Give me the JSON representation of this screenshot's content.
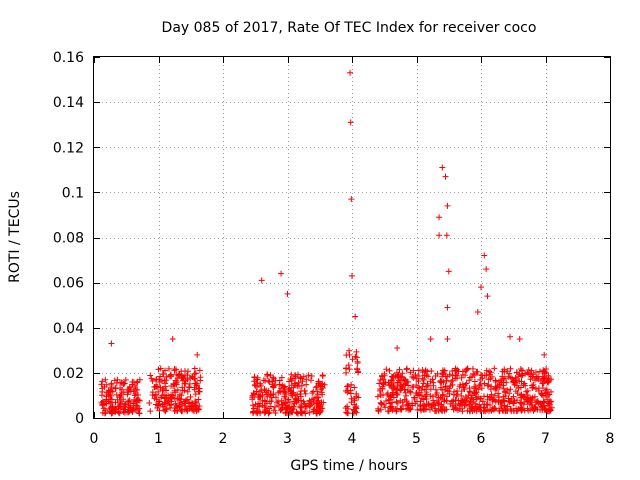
{
  "chart_data": {
    "type": "scatter",
    "title": "Day 085 of 2017, Rate Of TEC Index for receiver coco",
    "xlabel": "GPS time / hours",
    "ylabel": "ROTI / TECUs",
    "xlim": [
      0,
      8
    ],
    "ylim": [
      0,
      0.16
    ],
    "x_ticks": [
      0,
      1,
      2,
      3,
      4,
      5,
      6,
      7,
      8
    ],
    "x_tick_labels": [
      "0",
      "1",
      "2",
      "3",
      "4",
      "5",
      "6",
      "7",
      "8"
    ],
    "y_ticks": [
      0,
      0.02,
      0.04,
      0.06,
      0.08,
      0.1,
      0.12,
      0.14,
      0.16
    ],
    "y_tick_labels": [
      "0",
      "0.02",
      "0.04",
      "0.06",
      "0.08",
      "0.1",
      "0.12",
      "0.14",
      "0.16"
    ],
    "grid": true,
    "marker": "+",
    "marker_color": "#ff0000",
    "notable_points": [
      {
        "x": 0.27,
        "y": 0.033
      },
      {
        "x": 1.22,
        "y": 0.035
      },
      {
        "x": 1.6,
        "y": 0.028
      },
      {
        "x": 2.6,
        "y": 0.061
      },
      {
        "x": 2.9,
        "y": 0.064
      },
      {
        "x": 3.0,
        "y": 0.055
      },
      {
        "x": 3.97,
        "y": 0.153
      },
      {
        "x": 3.98,
        "y": 0.131
      },
      {
        "x": 3.99,
        "y": 0.097
      },
      {
        "x": 4.0,
        "y": 0.063
      },
      {
        "x": 4.05,
        "y": 0.045
      },
      {
        "x": 4.7,
        "y": 0.031
      },
      {
        "x": 5.22,
        "y": 0.035
      },
      {
        "x": 5.35,
        "y": 0.081
      },
      {
        "x": 5.35,
        "y": 0.089
      },
      {
        "x": 5.4,
        "y": 0.111
      },
      {
        "x": 5.45,
        "y": 0.107
      },
      {
        "x": 5.48,
        "y": 0.094
      },
      {
        "x": 5.47,
        "y": 0.081
      },
      {
        "x": 5.5,
        "y": 0.065
      },
      {
        "x": 5.48,
        "y": 0.049
      },
      {
        "x": 5.48,
        "y": 0.035
      },
      {
        "x": 6.05,
        "y": 0.072
      },
      {
        "x": 6.08,
        "y": 0.066
      },
      {
        "x": 6.0,
        "y": 0.058
      },
      {
        "x": 6.1,
        "y": 0.054
      },
      {
        "x": 5.95,
        "y": 0.047
      },
      {
        "x": 6.45,
        "y": 0.036
      },
      {
        "x": 6.6,
        "y": 0.035
      },
      {
        "x": 6.98,
        "y": 0.028
      }
    ],
    "clusters": [
      {
        "x_range": [
          0.1,
          0.72
        ],
        "y_base": [
          0.002,
          0.017
        ]
      },
      {
        "x_range": [
          0.85,
          1.65
        ],
        "y_base": [
          0.003,
          0.022
        ]
      },
      {
        "x_range": [
          2.45,
          3.58
        ],
        "y_base": [
          0.002,
          0.02
        ]
      },
      {
        "x_range": [
          3.9,
          4.1
        ],
        "y_base": [
          0.002,
          0.03
        ]
      },
      {
        "x_range": [
          4.4,
          7.1
        ],
        "y_base": [
          0.003,
          0.022
        ]
      }
    ]
  }
}
